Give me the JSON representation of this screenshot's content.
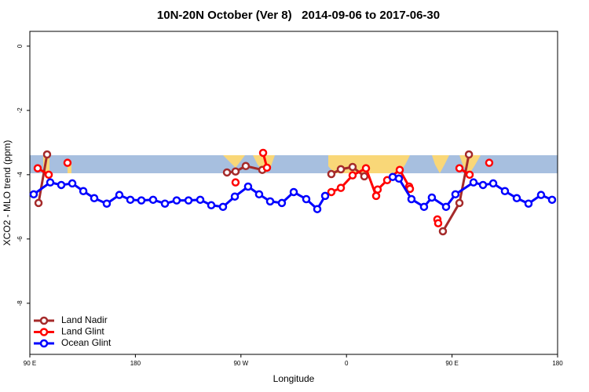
{
  "chart_data": {
    "type": "line",
    "title": "10N-20N October (Ver 8)   2014-09-06 to 2017-06-30",
    "x_label": "Longitude",
    "y_label": "XCO2 - MLO trend (ppm)",
    "xlim": [
      90,
      540
    ],
    "ylim": [
      -9.59,
      0.46
    ],
    "xticks": [
      {
        "value": 90,
        "label": "90 E"
      },
      180,
      {
        "value": 270,
        "label": "90 W"
      },
      {
        "value": 360,
        "label": "0"
      },
      {
        "value": 450,
        "label": "90 E"
      },
      {
        "value": 540,
        "label": "180"
      }
    ],
    "yticks": [
      0,
      -2,
      -4,
      -6,
      -8
    ],
    "legend": "bottomleft",
    "series": [
      {
        "name": "Land Nadir",
        "color": "#a52a2a",
        "x": [
          97.4,
          104.7,
          null,
          258.1,
          265.4,
          274.1,
          288.2,
          null,
          347.1,
          355.2,
          365.2,
          375.2,
          null,
          442.2,
          456.3,
          464.4
        ],
        "values": [
          -4.88,
          -3.37,
          null,
          -3.93,
          -3.9,
          -3.73,
          -3.85,
          null,
          -3.98,
          -3.83,
          -3.76,
          -4.05,
          null,
          -5.76,
          -4.88,
          -3.37
        ]
      },
      {
        "name": "Land Glint",
        "color": "#ff0000",
        "x": [
          96.7,
          106.1,
          null,
          122.1,
          null,
          265.4,
          null,
          288.9,
          292.2,
          null,
          347.1,
          355.2,
          365.2,
          376.6,
          385.3,
          386.6,
          394.7,
          405.4,
          413.4,
          414.1,
          null,
          437.5,
          438.2,
          null,
          456.3,
          465.0,
          null,
          481.7
        ],
        "values": [
          -3.8,
          -4.0,
          null,
          -3.63,
          null,
          -4.24,
          null,
          -3.32,
          -3.78,
          null,
          -4.54,
          -4.41,
          -4.02,
          -3.8,
          -4.66,
          -4.46,
          -4.17,
          -3.85,
          -4.37,
          -4.44,
          null,
          -5.39,
          -5.51,
          null,
          -3.8,
          -4.0,
          null,
          -3.63
        ]
      },
      {
        "name": "Ocean Glint",
        "color": "#0000ff",
        "x": [
          93.3,
          107.4,
          116.8,
          126.2,
          135.6,
          144.9,
          155.6,
          166.3,
          175.7,
          185.1,
          195.1,
          205.2,
          215.2,
          225.3,
          235.3,
          244.7,
          254.7,
          264.8,
          276.1,
          285.5,
          294.9,
          304.9,
          315.0,
          325.7,
          335.1,
          341.8,
          null,
          399.4,
          404.7,
          415.4,
          426.1,
          432.8,
          444.9,
          452.9,
          468.3,
          476.4,
          485.1,
          495.1,
          505.2,
          515.2,
          525.9,
          535.3
        ],
        "values": [
          -4.61,
          -4.24,
          -4.32,
          -4.27,
          -4.51,
          -4.73,
          -4.9,
          -4.63,
          -4.78,
          -4.8,
          -4.78,
          -4.9,
          -4.8,
          -4.8,
          -4.78,
          -4.95,
          -5.0,
          -4.68,
          -4.37,
          -4.61,
          -4.83,
          -4.88,
          -4.54,
          -4.76,
          -5.07,
          -4.66,
          null,
          -4.07,
          -4.12,
          -4.76,
          -5.0,
          -4.71,
          -5.0,
          -4.61,
          -4.24,
          -4.32,
          -4.27,
          -4.51,
          -4.73,
          -4.9,
          -4.63,
          -4.78
        ]
      }
    ]
  }
}
